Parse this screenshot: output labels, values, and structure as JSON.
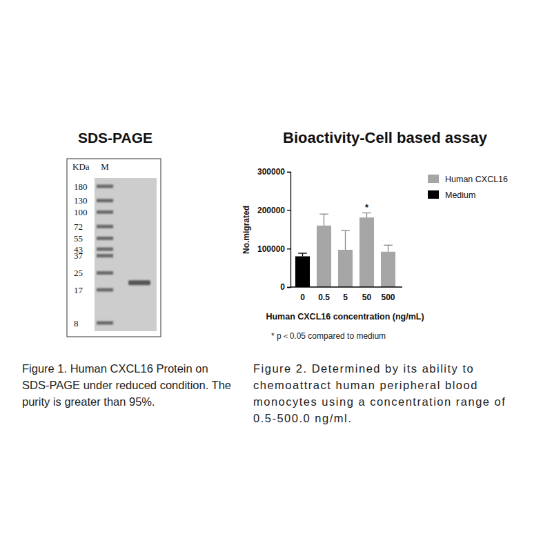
{
  "gel": {
    "title": "SDS-PAGE",
    "unit_label": "KDa",
    "lane_label": "M",
    "ladder": [
      180,
      130,
      100,
      72,
      55,
      43,
      37,
      25,
      17,
      8
    ],
    "sample_band": 20
  },
  "chart_data": {
    "type": "bar",
    "title": "Bioactivity-Cell based assay",
    "x_label": "Human CXCL16 concentration (ng/mL)",
    "y_label": "No.migrated",
    "categories": [
      "0",
      "0.5",
      "5",
      "50",
      "500"
    ],
    "series": [
      {
        "name": "Human CXCL16",
        "color": "#a6a6a6",
        "values": [
          null,
          160000,
          97000,
          181000,
          92000
        ],
        "errors": [
          null,
          30000,
          50000,
          12000,
          17000
        ]
      },
      {
        "name": "Medium",
        "color": "#000000",
        "values": [
          80000,
          null,
          null,
          null,
          null
        ],
        "errors": [
          8000,
          null,
          null,
          null,
          null
        ]
      }
    ],
    "ylim": [
      0,
      300000
    ],
    "yticks": [
      0,
      100000,
      200000,
      300000
    ],
    "legend": "right",
    "annotations": [
      {
        "text": "*",
        "category": "50"
      }
    ],
    "footnote": "* p＜0.05 compared to medium"
  },
  "captions": [
    "Figure 1. Human CXCL16 Protein on SDS-PAGE under reduced condition. The purity is greater than 95%.",
    "Figure 2. Determined by its ability to chemoattract human peripheral blood monocytes using a concentration range of 0.5-500.0 ng/ml."
  ]
}
